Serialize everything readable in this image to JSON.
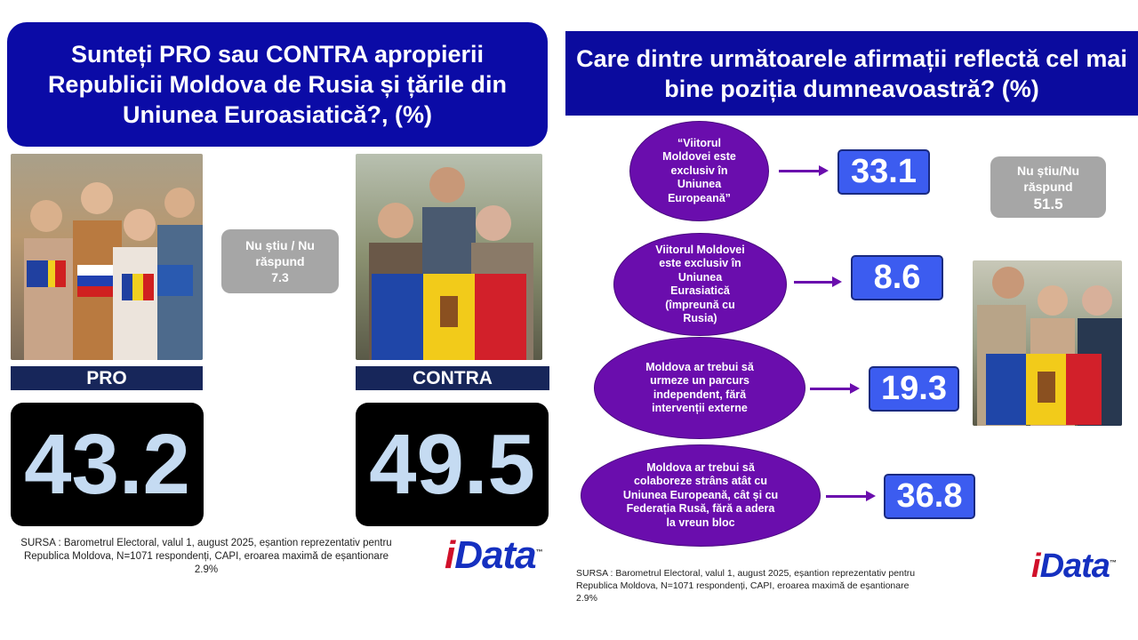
{
  "left": {
    "title": "Sunteți PRO sau CONTRA apropierii Republicii Moldova de Rusia și țările din Uniunea Euroasiatică?, (%)",
    "pro": {
      "label": "PRO",
      "value": "43.2"
    },
    "contra": {
      "label": "CONTRA",
      "value": "49.5"
    },
    "dont_know": {
      "label": "Nu știu / Nu răspund",
      "value": "7.3"
    },
    "source": "SURSA : Barometrul Electoral, valul 1, august 2025, eșantion reprezentativ pentru Republica Moldova, N=1071 respondenți, CAPI, eroarea maximă de eșantionare 2.9%",
    "logo": {
      "i": "i",
      "rest": "Data",
      "tm": "™"
    }
  },
  "right": {
    "title": "Care dintre următoarele afirmații reflectă cel mai bine poziția dumneavoastră? (%)",
    "items": [
      {
        "text": "“Viitorul Moldovei este exclusiv în Uniunea Europeană”",
        "value": "33.1"
      },
      {
        "text": "Viitorul Moldovei este exclusiv în Uniunea Eurasiatică (împreună cu Rusia)",
        "value": "8.6"
      },
      {
        "text": "Moldova ar trebui să urmeze un parcurs independent, fără intervenții externe",
        "value": "19.3"
      },
      {
        "text": "Moldova ar trebui să colaboreze strâns atât cu Uniunea Europeană, cât și cu Federația Rusă, fără a adera la vreun bloc",
        "value": "36.8"
      }
    ],
    "dont_know": {
      "label": "Nu știu/Nu răspund",
      "value": "51.5"
    },
    "source": "SURSA : Barometrul Electoral, valul 1, august 2025, eșantion reprezentativ pentru Republica Moldova, N=1071 respondenți, CAPI, eroarea maximă de eșantionare 2.9%",
    "logo": {
      "i": "i",
      "rest": "Data",
      "tm": "™"
    }
  },
  "colors": {
    "title_bg": "#0b0ba6",
    "ellipse": "#6a0dad",
    "value_box": "#3c5cf0",
    "big_value": "#c5dbf2",
    "logo_blue": "#1530c0",
    "logo_red": "#d0102a"
  }
}
